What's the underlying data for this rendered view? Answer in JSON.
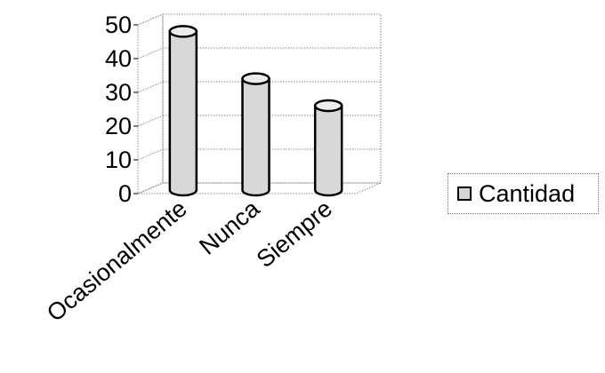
{
  "chart_data": {
    "type": "bar",
    "categories": [
      "Ocasionalmente",
      "Nunca",
      "Siempre"
    ],
    "series": [
      {
        "name": "Cantidad",
        "values": [
          47,
          33,
          25
        ]
      }
    ],
    "ylim": [
      0,
      50
    ],
    "yticks": [
      0,
      10,
      20,
      30,
      40,
      50
    ],
    "grid": true,
    "legend_position": "right",
    "three_d": true,
    "bar_shape": "cylinder",
    "colors": {
      "bar": "#d8d8d8",
      "bar_outline": "#000000",
      "grid": "#888888"
    }
  }
}
